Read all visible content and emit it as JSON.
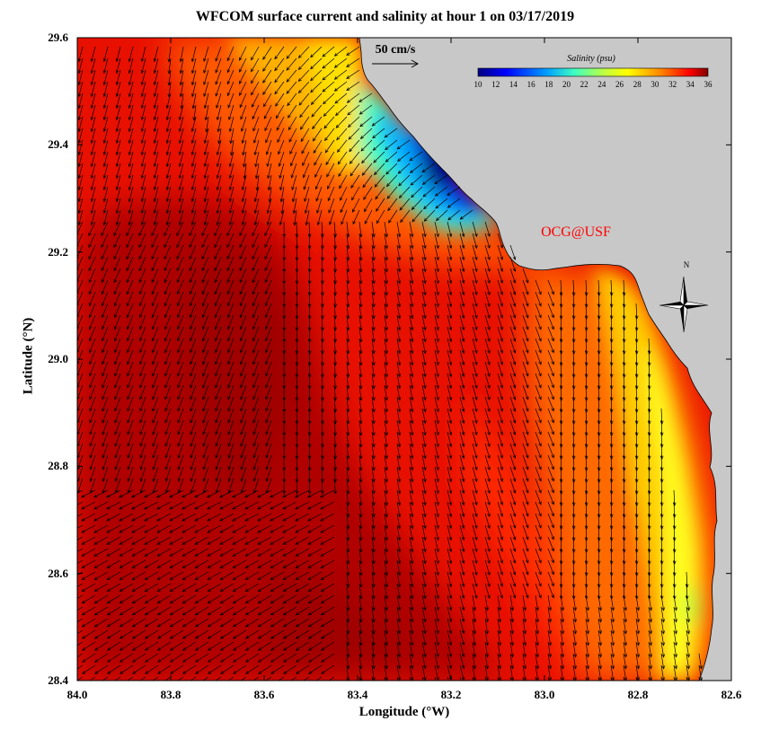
{
  "title": "WFCOM surface current and salinity at hour 1 on 03/17/2019",
  "xlabel": "Longitude (°W)",
  "ylabel": "Latitude (°N)",
  "x_ticks": [
    "84.0",
    "83.8",
    "83.6",
    "83.4",
    "83.2",
    "83.0",
    "82.8",
    "82.6"
  ],
  "y_ticks": [
    "29.6",
    "29.4",
    "29.2",
    "29.0",
    "28.8",
    "28.6",
    "28.4"
  ],
  "scale_arrow_label": "50 cm/s",
  "colorbar": {
    "label": "Salinity (psu)",
    "ticks": [
      "10",
      "12",
      "14",
      "16",
      "18",
      "20",
      "22",
      "24",
      "26",
      "28",
      "30",
      "32",
      "34",
      "36"
    ]
  },
  "credit": "OCG@USF",
  "compass_label": "N",
  "colors": {
    "land": "#c8c8c8",
    "credit": "#ff0000",
    "salinity_min": "#00007f",
    "salinity_max": "#7f0000"
  },
  "chart_data": {
    "type": "heatmap",
    "variable": "salinity",
    "units": "psu",
    "x_range_degW": [
      84.0,
      82.6
    ],
    "y_range_degN": [
      28.4,
      29.6
    ],
    "colorbar_range": [
      10,
      36
    ],
    "vector_field": "surface current",
    "scale_vector_cm_s": 50
  }
}
